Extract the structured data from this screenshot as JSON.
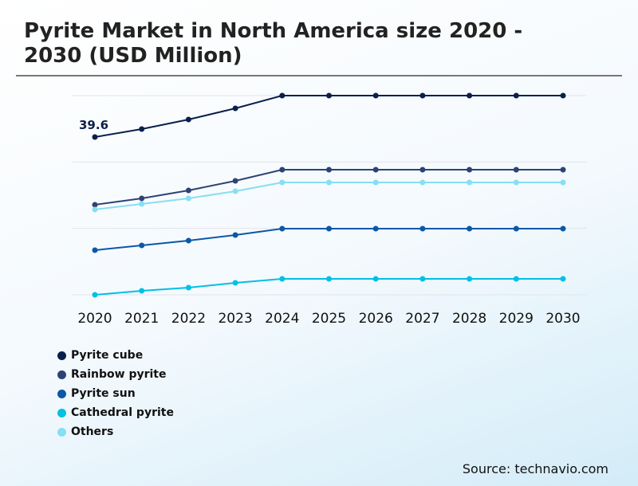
{
  "title": "Pyrite Market in North America size 2020 - 2030 (USD Million)",
  "source": "Source: technavio.com",
  "chart_data": {
    "type": "line",
    "title": "Pyrite Market in North America size 2020 - 2030 (USD Million)",
    "x": [
      "2020",
      "2021",
      "2022",
      "2023",
      "2024",
      "2025",
      "2026",
      "2027",
      "2028",
      "2029",
      "2030"
    ],
    "ylim": [
      0,
      50
    ],
    "grid": true,
    "legend_placement": "bottom-left",
    "annotation": "39.6",
    "series": [
      {
        "name": "Pyrite cube",
        "color": "#0b1f4b",
        "values": [
          39.6,
          41.6,
          44.0,
          46.8,
          50,
          50,
          50,
          50,
          50,
          50,
          50
        ]
      },
      {
        "name": "Rainbow pyrite",
        "color": "#2e4374",
        "values": [
          22.6,
          24.2,
          26.2,
          28.6,
          31.4,
          31.4,
          31.4,
          31.4,
          31.4,
          31.4,
          31.4
        ]
      },
      {
        "name": "Pyrite sun",
        "color": "#0a58a8",
        "values": [
          11.2,
          12.4,
          13.6,
          15.0,
          16.6,
          16.6,
          16.6,
          16.6,
          16.6,
          16.6,
          16.6
        ]
      },
      {
        "name": "Cathedral pyrite",
        "color": "#00c0e4",
        "values": [
          0,
          1.0,
          1.8,
          3.0,
          4.0,
          4.0,
          4.0,
          4.0,
          4.0,
          4.0,
          4.0
        ]
      },
      {
        "name": "Others",
        "color": "#86dff2",
        "values": [
          21.4,
          22.8,
          24.2,
          26.0,
          28.2,
          28.2,
          28.2,
          28.2,
          28.2,
          28.2,
          28.2
        ]
      }
    ]
  }
}
